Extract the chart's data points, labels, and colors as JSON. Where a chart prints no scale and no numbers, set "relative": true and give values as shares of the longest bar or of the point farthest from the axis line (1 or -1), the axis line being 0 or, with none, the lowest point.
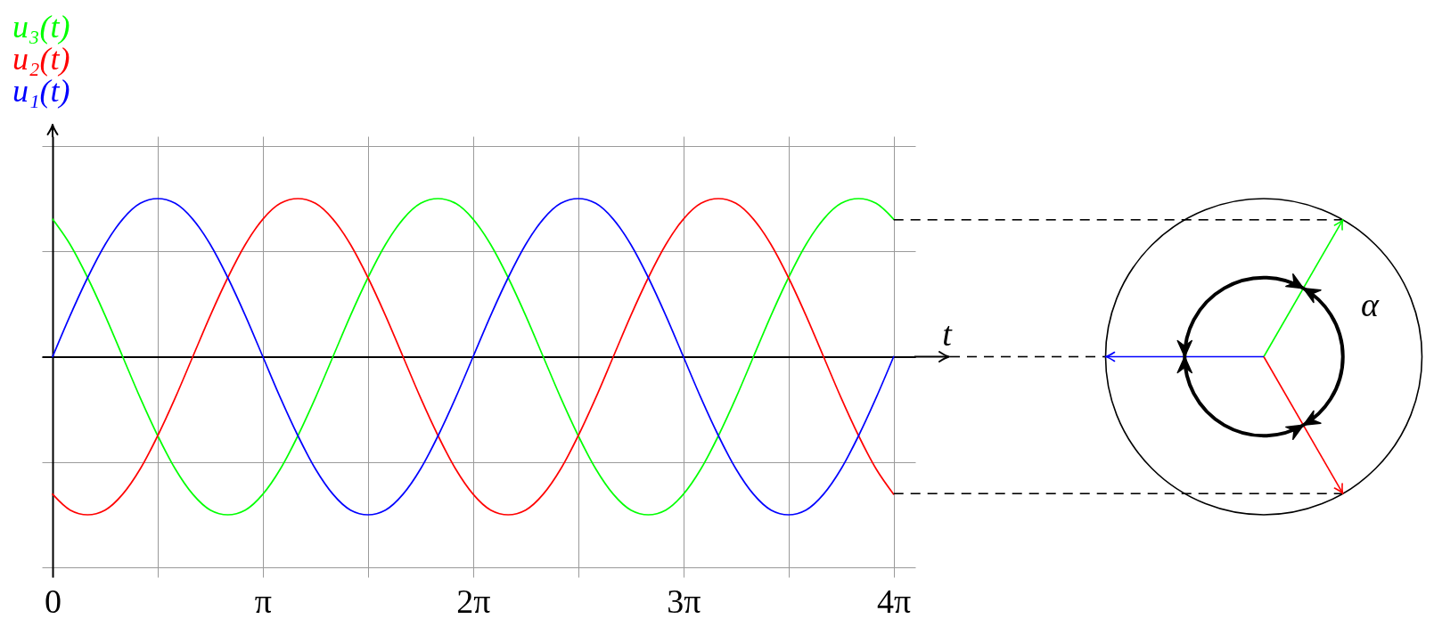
{
  "chart_data": {
    "type": "line",
    "relative": true,
    "xlabel": "t",
    "x": [
      0,
      0.2618,
      0.5236,
      0.7854,
      1.0472,
      1.309,
      1.5708,
      1.8326,
      2.0944,
      2.3562,
      2.618,
      2.8798,
      3.1416,
      3.4034,
      3.6652,
      3.927,
      4.1888,
      4.4506,
      4.7124,
      4.9742,
      5.236,
      5.4978,
      5.7596,
      6.0214,
      6.2832,
      6.545,
      6.8068,
      7.0686,
      7.3304,
      7.5922,
      7.854,
      8.1158,
      8.3776,
      8.6394,
      8.9012,
      9.163,
      9.4248,
      9.6866,
      9.9484,
      10.2102,
      10.472,
      10.7338,
      10.9956,
      11.2574,
      11.5192,
      11.781,
      12.0428,
      12.3046,
      12.5664
    ],
    "xlim": [
      -0.16,
      12.89
    ],
    "xticks": [
      0,
      {
        "value": 1.5708,
        "label": null
      },
      {
        "value": 3.1416,
        "label": "π"
      },
      {
        "value": 4.7124,
        "label": null
      },
      {
        "value": 6.2832,
        "label": "2π"
      },
      {
        "value": 7.854,
        "label": null
      },
      {
        "value": 9.4248,
        "label": "3π"
      },
      {
        "value": 10.9956,
        "label": null
      },
      {
        "value": 12.5664,
        "label": "4π"
      }
    ],
    "series": [
      {
        "name": "u₃(t)",
        "color": "#00ff00",
        "values": [
          0.87,
          0.71,
          0.5,
          0.26,
          0,
          -0.26,
          -0.5,
          -0.71,
          -0.87,
          -0.97,
          -1,
          -0.97,
          -0.87,
          -0.71,
          -0.5,
          -0.26,
          0,
          0.26,
          0.5,
          0.71,
          0.87,
          0.97,
          1,
          0.97,
          0.87,
          0.71,
          0.5,
          0.26,
          0,
          -0.26,
          -0.5,
          -0.71,
          -0.87,
          -0.97,
          -1,
          -0.97,
          -0.87,
          -0.71,
          -0.5,
          -0.26,
          0,
          0.26,
          0.5,
          0.71,
          0.87,
          0.97,
          1,
          0.97,
          0.87
        ]
      },
      {
        "name": "u₂(t)",
        "color": "#ff0000",
        "values": [
          -0.87,
          -0.97,
          -1,
          -0.97,
          -0.87,
          -0.71,
          -0.5,
          -0.26,
          0,
          0.26,
          0.5,
          0.71,
          0.87,
          0.97,
          1,
          0.97,
          0.87,
          0.71,
          0.5,
          0.26,
          0,
          -0.26,
          -0.5,
          -0.71,
          -0.87,
          -0.97,
          -1,
          -0.97,
          -0.87,
          -0.71,
          -0.5,
          -0.26,
          0,
          0.26,
          0.5,
          0.71,
          0.87,
          0.97,
          1,
          0.97,
          0.87,
          0.71,
          0.5,
          0.26,
          0,
          -0.26,
          -0.5,
          -0.71,
          -0.87
        ]
      },
      {
        "name": "u₁(t)",
        "color": "#0000ff",
        "values": [
          0,
          0.26,
          0.5,
          0.71,
          0.87,
          0.97,
          1,
          0.97,
          0.87,
          0.71,
          0.5,
          0.26,
          0,
          -0.26,
          -0.5,
          -0.71,
          -0.87,
          -0.97,
          -1,
          -0.97,
          -0.87,
          -0.71,
          -0.5,
          -0.26,
          0,
          0.26,
          0.5,
          0.71,
          0.87,
          0.97,
          1,
          0.97,
          0.87,
          0.71,
          0.5,
          0.26,
          0,
          -0.26,
          -0.5,
          -0.71,
          -0.87,
          -0.97,
          -1,
          -0.97,
          -0.87,
          -0.71,
          -0.5,
          -0.26,
          0
        ]
      }
    ],
    "grid": true,
    "legend": "top left",
    "annotations": [
      "α"
    ]
  }
}
